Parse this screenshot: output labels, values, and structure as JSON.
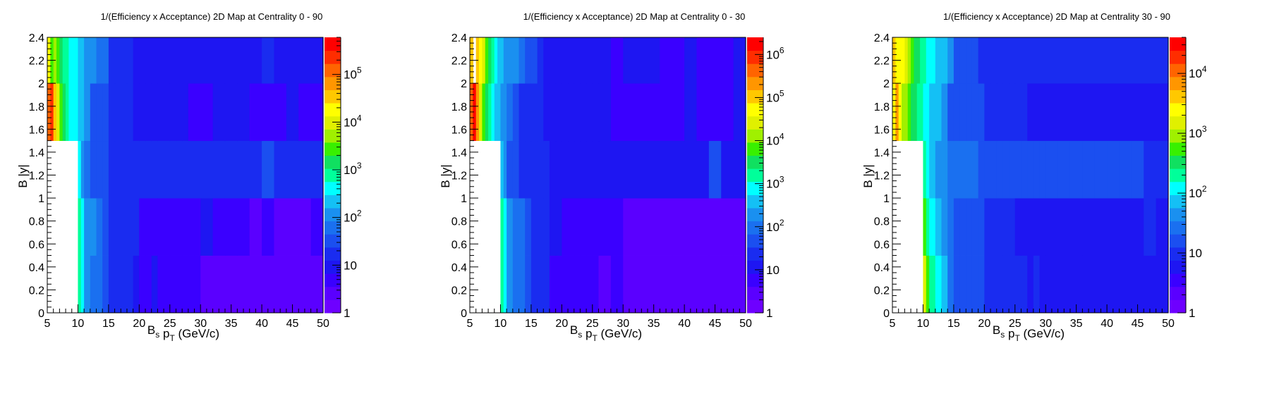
{
  "chart_data": [
    {
      "type": "heatmap",
      "title": "1/(Efficiency x Acceptance) 2D Map at Centrality 0 - 90",
      "xlabel": "B_s p_T (GeV/c)",
      "ylabel": "B |y|",
      "xlim": [
        5,
        50
      ],
      "ylim": [
        0,
        2.4
      ],
      "x_ticks": [
        "5",
        "10",
        "15",
        "20",
        "25",
        "30",
        "35",
        "40",
        "45",
        "50"
      ],
      "y_ticks": [
        "0",
        "0.2",
        "0.4",
        "0.6",
        "0.8",
        "1",
        "1.2",
        "1.4",
        "1.6",
        "1.8",
        "2",
        "2.2",
        "2.4"
      ],
      "color_scale": "log",
      "z_range": [
        1,
        600000
      ],
      "z_ticks": [
        {
          "value": 1,
          "label": "1"
        },
        {
          "value": 10,
          "label": "10"
        },
        {
          "value": 100,
          "label": "10^2"
        },
        {
          "value": 1000,
          "label": "10^3"
        },
        {
          "value": 10000,
          "label": "10^4"
        },
        {
          "value": 100000,
          "label": "10^5"
        }
      ],
      "y_bins": [
        0,
        0.5,
        1.0,
        1.5,
        2.0,
        2.4
      ],
      "x_bins": [
        5,
        5.5,
        6,
        6.5,
        7,
        7.5,
        8,
        8.5,
        9,
        9.5,
        10,
        10.5,
        11,
        12,
        13,
        14,
        15,
        16,
        17,
        18,
        19,
        20,
        21,
        22,
        23,
        24,
        25,
        26,
        27,
        28,
        29,
        30,
        32,
        34,
        36,
        38,
        40,
        42,
        44,
        46,
        48,
        50
      ],
      "z": [
        [
          null,
          null,
          null,
          null,
          null,
          null,
          null,
          null,
          null,
          null,
          1000,
          400,
          150,
          80,
          60,
          30,
          20,
          20,
          15,
          15,
          12,
          6,
          6,
          8,
          6,
          6,
          6,
          6,
          6,
          6,
          6,
          3,
          3,
          3,
          3,
          3,
          3,
          3,
          3,
          3,
          3
        ],
        [
          null,
          null,
          null,
          null,
          null,
          null,
          null,
          null,
          null,
          null,
          1000,
          500,
          150,
          100,
          60,
          30,
          20,
          20,
          20,
          15,
          20,
          6,
          6,
          6,
          6,
          6,
          6,
          6,
          6,
          6,
          6,
          10,
          4,
          4,
          4,
          3,
          4,
          3,
          3,
          3,
          4
        ],
        [
          null,
          null,
          null,
          null,
          null,
          null,
          null,
          null,
          null,
          null,
          300,
          100,
          60,
          40,
          30,
          30,
          20,
          20,
          15,
          15,
          15,
          15,
          15,
          15,
          15,
          15,
          15,
          15,
          15,
          15,
          15,
          15,
          15,
          15,
          15,
          15,
          30,
          15,
          15,
          15,
          15
        ],
        [
          100000,
          300000,
          40000,
          8000,
          3000,
          1200,
          800,
          500,
          400,
          300,
          200,
          180,
          150,
          40,
          30,
          25,
          20,
          20,
          15,
          15,
          12,
          12,
          12,
          12,
          12,
          12,
          12,
          12,
          12,
          6,
          6,
          6,
          12,
          12,
          12,
          4,
          4,
          6,
          12,
          4,
          4
        ],
        [
          20000,
          3000,
          5000,
          2500,
          2000,
          1000,
          800,
          500,
          400,
          300,
          200,
          180,
          150,
          100,
          80,
          60,
          20,
          20,
          15,
          15,
          12,
          12,
          12,
          12,
          12,
          12,
          12,
          12,
          12,
          12,
          12,
          12,
          10,
          10,
          10,
          10,
          20,
          10,
          10,
          10,
          10
        ]
      ]
    },
    {
      "type": "heatmap",
      "title": "1/(Efficiency x Acceptance) 2D Map at Centrality 0 - 30",
      "xlabel": "B_s p_T (GeV/c)",
      "ylabel": "B |y|",
      "xlim": [
        5,
        50
      ],
      "ylim": [
        0,
        2.4
      ],
      "x_ticks": [
        "5",
        "10",
        "15",
        "20",
        "25",
        "30",
        "35",
        "40",
        "45",
        "50"
      ],
      "y_ticks": [
        "0",
        "0.2",
        "0.4",
        "0.6",
        "0.8",
        "1",
        "1.2",
        "1.4",
        "1.6",
        "1.8",
        "2",
        "2.2",
        "2.4"
      ],
      "color_scale": "log",
      "z_range": [
        1,
        2500000
      ],
      "z_ticks": [
        {
          "value": 1,
          "label": "1"
        },
        {
          "value": 10,
          "label": "10"
        },
        {
          "value": 100,
          "label": "10^2"
        },
        {
          "value": 1000,
          "label": "10^3"
        },
        {
          "value": 10000,
          "label": "10^4"
        },
        {
          "value": 100000,
          "label": "10^5"
        },
        {
          "value": 1000000,
          "label": "10^6"
        }
      ],
      "y_bins": [
        0,
        0.5,
        1.0,
        1.5,
        2.0,
        2.4
      ],
      "x_bins": [
        5,
        5.5,
        6,
        6.5,
        7,
        7.5,
        8,
        8.5,
        9,
        9.5,
        10,
        10.5,
        11,
        12,
        13,
        14,
        15,
        16,
        17,
        18,
        19,
        20,
        21,
        22,
        23,
        24,
        25,
        26,
        27,
        28,
        29,
        30,
        32,
        34,
        36,
        38,
        40,
        42,
        44,
        46,
        48,
        50
      ],
      "z": [
        [
          null,
          null,
          null,
          null,
          null,
          null,
          null,
          null,
          null,
          null,
          1500,
          600,
          200,
          100,
          70,
          40,
          25,
          20,
          20,
          6,
          6,
          6,
          6,
          6,
          6,
          6,
          6,
          3,
          3,
          6,
          6,
          3,
          3,
          3,
          3,
          3,
          3,
          3,
          3,
          3,
          3
        ],
        [
          null,
          null,
          null,
          null,
          null,
          null,
          null,
          null,
          null,
          null,
          1500,
          600,
          200,
          100,
          70,
          40,
          25,
          20,
          20,
          12,
          12,
          6,
          6,
          6,
          6,
          6,
          6,
          6,
          6,
          6,
          6,
          3,
          3,
          3,
          3,
          3,
          3,
          3,
          3,
          3,
          3
        ],
        [
          null,
          null,
          null,
          null,
          null,
          null,
          null,
          null,
          null,
          null,
          300,
          150,
          50,
          40,
          30,
          30,
          25,
          25,
          25,
          15,
          15,
          15,
          15,
          15,
          15,
          15,
          15,
          15,
          15,
          15,
          15,
          15,
          15,
          15,
          15,
          15,
          15,
          15,
          40,
          15,
          15
        ],
        [
          500000,
          2000000,
          200000,
          30000,
          8000,
          3000,
          1500,
          800,
          500,
          400,
          200,
          150,
          100,
          40,
          30,
          25,
          20,
          20,
          15,
          15,
          12,
          12,
          12,
          12,
          12,
          12,
          12,
          12,
          12,
          6,
          6,
          6,
          6,
          6,
          6,
          6,
          12,
          6,
          6,
          6,
          12
        ],
        [
          100000,
          null,
          80000,
          40000,
          20000,
          8000,
          4000,
          1500,
          800,
          500,
          300,
          200,
          150,
          150,
          100,
          60,
          40,
          20,
          15,
          15,
          12,
          12,
          12,
          12,
          12,
          12,
          12,
          12,
          12,
          6,
          6,
          12,
          12,
          12,
          6,
          6,
          12,
          6,
          6,
          6,
          12
        ]
      ]
    },
    {
      "type": "heatmap",
      "title": "1/(Efficiency x Acceptance) 2D Map at Centrality 30 - 90",
      "xlabel": "B_s p_T (GeV/c)",
      "ylabel": "B |y|",
      "xlim": [
        5,
        50
      ],
      "ylim": [
        0,
        2.4
      ],
      "x_ticks": [
        "5",
        "10",
        "15",
        "20",
        "25",
        "30",
        "35",
        "40",
        "45",
        "50"
      ],
      "y_ticks": [
        "0",
        "0.2",
        "0.4",
        "0.6",
        "0.8",
        "1",
        "1.2",
        "1.4",
        "1.6",
        "1.8",
        "2",
        "2.2",
        "2.4"
      ],
      "color_scale": "log",
      "z_range": [
        1,
        40000
      ],
      "z_ticks": [
        {
          "value": 1,
          "label": "1"
        },
        {
          "value": 10,
          "label": "10"
        },
        {
          "value": 100,
          "label": "10^2"
        },
        {
          "value": 1000,
          "label": "10^3"
        },
        {
          "value": 10000,
          "label": "10^4"
        }
      ],
      "y_bins": [
        0,
        0.5,
        1.0,
        1.5,
        2.0,
        2.4
      ],
      "x_bins": [
        5,
        5.5,
        6,
        6.5,
        7,
        7.5,
        8,
        8.5,
        9,
        9.5,
        10,
        10.5,
        11,
        12,
        13,
        14,
        15,
        16,
        17,
        18,
        19,
        20,
        21,
        22,
        23,
        24,
        25,
        26,
        27,
        28,
        29,
        30,
        32,
        34,
        36,
        38,
        40,
        42,
        44,
        46,
        48,
        50
      ],
      "z": [
        [
          null,
          null,
          null,
          null,
          null,
          null,
          null,
          null,
          null,
          null,
          1500,
          600,
          200,
          100,
          70,
          30,
          20,
          20,
          20,
          20,
          20,
          12,
          12,
          12,
          12,
          12,
          12,
          12,
          6,
          12,
          6,
          6,
          6,
          6,
          6,
          6,
          6,
          6,
          6,
          6,
          6
        ],
        [
          null,
          null,
          null,
          null,
          null,
          null,
          null,
          null,
          null,
          null,
          500,
          250,
          150,
          80,
          50,
          30,
          20,
          20,
          20,
          20,
          20,
          12,
          12,
          12,
          12,
          12,
          6,
          6,
          6,
          6,
          6,
          6,
          6,
          6,
          6,
          6,
          6,
          6,
          6,
          12,
          6
        ],
        [
          null,
          null,
          null,
          null,
          null,
          null,
          null,
          null,
          null,
          null,
          200,
          120,
          70,
          50,
          40,
          30,
          25,
          25,
          25,
          25,
          20,
          20,
          20,
          20,
          20,
          20,
          15,
          15,
          15,
          15,
          15,
          15,
          15,
          15,
          15,
          15,
          15,
          15,
          15,
          12,
          12
        ],
        [
          3000,
          6000,
          2000,
          1000,
          800,
          500,
          400,
          300,
          250,
          200,
          150,
          120,
          80,
          60,
          40,
          20,
          20,
          15,
          15,
          15,
          15,
          12,
          12,
          12,
          12,
          12,
          12,
          12,
          6,
          6,
          6,
          6,
          6,
          6,
          6,
          6,
          6,
          6,
          6,
          6,
          6
        ],
        [
          5000,
          3000,
          2500,
          2000,
          1200,
          800,
          600,
          400,
          300,
          250,
          200,
          150,
          100,
          80,
          60,
          40,
          20,
          20,
          15,
          15,
          12,
          12,
          12,
          12,
          12,
          12,
          12,
          12,
          12,
          12,
          12,
          12,
          12,
          12,
          12,
          12,
          12,
          12,
          12,
          12,
          12
        ]
      ]
    }
  ],
  "palette": [
    "#6e00ff",
    "#5a00ff",
    "#3a00ff",
    "#1e16f2",
    "#1a2cf0",
    "#1b4ff0",
    "#1a70f0",
    "#1a90f0",
    "#14c0f5",
    "#00ffff",
    "#00ff9a",
    "#10e060",
    "#38f000",
    "#a0f000",
    "#e0f000",
    "#ffff00",
    "#ffc800",
    "#ff9600",
    "#ff6400",
    "#ff2d00",
    "#ff0000"
  ]
}
